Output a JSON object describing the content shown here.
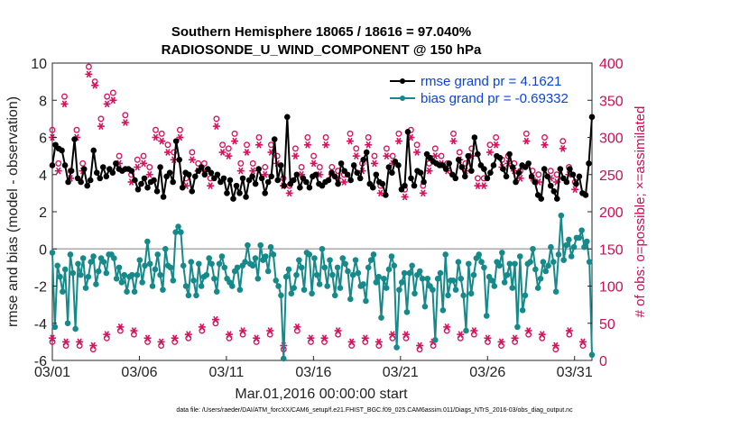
{
  "chart_data": {
    "type": "line",
    "title": "Southern Hemisphere 18065 / 18616 = 97.040%",
    "subtitle": "RADIOSONDE_U_WIND_COMPONENT @ 150 hPa",
    "xlabel": "Mar.01,2016 00:00:00 start",
    "ylabel_left": "rmse and bias (model - observation)",
    "ylabel_right": "# of obs: o=possible; ×=assimilated",
    "footer": "data file: /Users/raeder/DAI/ATM_forcXX/CAM6_setup/f.e21.FHIST_BGC.f09_025.CAM6assim.011/Diags_NTrS_2016-03/obs_diag_output.nc",
    "x_ticks": [
      {
        "day": 0,
        "label": "03/01"
      },
      {
        "day": 5,
        "label": "03/06"
      },
      {
        "day": 10,
        "label": "03/11"
      },
      {
        "day": 15,
        "label": "03/16"
      },
      {
        "day": 20,
        "label": "03/21"
      },
      {
        "day": 25,
        "label": "03/26"
      },
      {
        "day": 30,
        "label": "03/31"
      }
    ],
    "xlim": [
      0,
      31
    ],
    "ylim_left": [
      -6,
      10
    ],
    "ylim_right": [
      0,
      400
    ],
    "yticks_left": [
      -6,
      -4,
      -2,
      0,
      2,
      4,
      6,
      8,
      10
    ],
    "yticks_right": [
      0,
      50,
      100,
      150,
      200,
      250,
      300,
      350,
      400
    ],
    "colors": {
      "rmse": "#000000",
      "bias": "#168a8a",
      "obs": "#d6125d",
      "legend_text": "#0b44d8",
      "zero_line": "#aaaaaa",
      "right_axis": "#cc0f55"
    },
    "legend": [
      "rmse grand pr = 4.1621",
      "bias grand pr = -0.69332"
    ],
    "series": [
      {
        "name": "rmse",
        "axis": "left",
        "values": [
          4.5,
          5.6,
          5.4,
          5.3,
          4.5,
          3.6,
          4.2,
          5.9,
          3.8,
          3.6,
          4.3,
          3.4,
          3.7,
          5.3,
          4.1,
          3.8,
          4.4,
          3.9,
          4.3,
          4.1,
          4.6,
          4.3,
          4.2,
          4.3,
          4.3,
          4.2,
          3.7,
          3.2,
          3.5,
          3.8,
          3.3,
          3.6,
          3.7,
          3.1,
          4.4,
          2.8,
          3.9,
          4.1,
          3.6,
          5.8,
          4.8,
          3.3,
          4.1,
          4.0,
          3.1,
          3.9,
          4.2,
          4.4,
          4.0,
          4.3,
          4.1,
          3.8,
          4.0,
          3.6,
          3.8,
          3.0,
          3.7,
          2.7,
          3.4,
          3.0,
          3.8,
          2.8,
          3.7,
          3.9,
          3.5,
          4.3,
          3.8,
          3.0,
          3.6,
          3.9,
          5.9,
          3.7,
          4.5,
          3.4,
          7.1,
          3.5,
          3.7,
          4.0,
          3.3,
          3.8,
          3.6,
          3.3,
          3.9,
          4.0,
          3.5,
          3.4,
          3.6,
          3.7,
          4.1,
          3.9,
          3.5,
          4.6,
          4.2,
          4.0,
          3.7,
          4.5,
          4.1,
          3.8,
          4.8,
          5.2,
          3.5,
          3.3,
          4.0,
          3.6,
          3.5,
          2.9,
          4.4,
          4.1,
          4.7,
          4.5,
          3.2,
          3.4,
          6.3,
          3.8,
          3.4,
          4.2,
          4.1,
          3.6,
          5.1,
          4.9,
          4.7,
          4.6,
          4.5,
          4.5,
          4.3,
          4.6,
          4.0,
          3.8,
          4.8,
          4.4,
          3.9,
          5.0,
          4.2,
          6.0,
          5.1,
          4.5,
          4.3,
          3.8,
          4.1,
          4.5,
          5.0,
          4.9,
          4.3,
          3.9,
          5.1,
          4.4,
          3.6,
          4.1,
          4.5,
          4.4,
          4.6,
          3.9,
          3.6,
          2.9,
          2.7,
          4.3,
          3.9,
          3.4,
          3.1,
          2.7,
          4.3,
          3.8,
          3.6,
          4.3,
          4.0,
          3.5,
          3.9,
          3.0,
          2.9,
          4.6,
          7.1
        ],
        "marker": "filled-circle"
      },
      {
        "name": "bias",
        "axis": "left",
        "values": [
          -0.2,
          -4.2,
          -0.9,
          -1.5,
          -2.3,
          -1.1,
          -4.0,
          -0.3,
          -1.3,
          -4.3,
          -0.8,
          -1.4,
          -0.5,
          -2.1,
          -1.5,
          -0.7,
          -0.4,
          -1.9,
          -1.2,
          -0.5,
          -0.7,
          -1.3,
          -0.3,
          -0.3,
          -0.5,
          -1.6,
          -1.0,
          -1.8,
          -1.4,
          -2.3,
          -1.5,
          -1.4,
          -2.3,
          -1.4,
          -0.6,
          -1.8,
          -0.9,
          0.4,
          -0.8,
          -2.0,
          -1.1,
          -0.3,
          -1.4,
          -2.2,
          0.0,
          -0.9,
          -1.0,
          -1.7,
          0.9,
          1.2,
          0.9,
          -0.9,
          -2.0,
          -2.5,
          -0.7,
          -1.7,
          -2.5,
          -0.8,
          -2.0,
          -1.5,
          -1.4,
          -0.5,
          -0.8,
          -1.6,
          -2.3,
          -0.8,
          -0.4,
          -1.0,
          -1.6,
          -1.8,
          -2.0,
          -1.2,
          -1.0,
          -2.2,
          -0.9,
          -0.7,
          0.2,
          -0.8,
          -0.9,
          -0.5,
          -1.6,
          0.2,
          -0.6,
          -0.4,
          -1.2,
          0.1,
          -0.3,
          -1.7,
          -2.0,
          -2.5,
          -5.9,
          -1.5,
          -1.1,
          -2.4,
          -2.1,
          -1.4,
          -0.6,
          -1.0,
          -2.2,
          -0.2,
          -0.3,
          -2.4,
          -0.5,
          -1.4,
          -1.9,
          0.0,
          -1.0,
          -2.0,
          -0.6,
          -1.4,
          -2.5,
          -1.0,
          -2.1,
          -0.5,
          -0.8,
          -1.2,
          -2.7,
          -1.4,
          -0.6,
          -1.3,
          -2.0,
          -1.9,
          -2.8,
          -1.0,
          -0.6,
          -0.3,
          -1.8,
          -1.5,
          -3.7,
          -1.6,
          -2.1,
          -1.1,
          -0.4,
          -0.9,
          -5.3,
          -2.2,
          -1.8,
          -1.3,
          -3.4,
          -1.3,
          -0.9,
          -2.4,
          -1.4,
          -1.2,
          -1.6,
          -3.1,
          -1.6,
          -2.0,
          -2.2,
          -4.9,
          -1.6,
          -1.3,
          -3.3,
          -0.3,
          -2.5,
          -1.7,
          -1.7,
          -2.2,
          -0.7,
          -1.6,
          -2.5,
          -4.4,
          -0.8,
          -2.4,
          -1.4,
          -0.5,
          -0.3,
          -0.7,
          -1.0,
          -3.6,
          -1.5,
          -1.7,
          -2.0,
          -0.7,
          -0.9,
          -0.2,
          -1.8,
          -1.4,
          -0.8,
          -2.1,
          -0.8,
          -4.2,
          -0.4,
          -3.3,
          -2.5,
          -0.8,
          -0.7,
          0.0,
          -1.1,
          -2.1,
          -1.6,
          -0.7,
          -1.2,
          -0.9,
          0.1,
          -0.7,
          -2.3,
          -0.3,
          1.8,
          -0.6,
          0.2,
          0.5,
          -0.4,
          0.1,
          0.6,
          0.6,
          1.0,
          0.1,
          0.4,
          -0.7,
          -5.7
        ],
        "marker": "filled-circle"
      },
      {
        "name": "possible",
        "axis": "right",
        "values": [
          310,
          260,
          265,
          270,
          355,
          305,
          255,
          350,
          310,
          330,
          265,
          265,
          395,
          265,
          375,
          335,
          325,
          270,
          355,
          365,
          360,
          385,
          275,
          260,
          330,
          260,
          250,
          310,
          270,
          345,
          275,
          280,
          260,
          295,
          310,
          265,
          305,
          255,
          290,
          265,
          280,
          295,
          310,
          305,
          245,
          265,
          280,
          260,
          265,
          295,
          265,
          275,
          245,
          300,
          325,
          330,
          290,
          320,
          285,
          360,
          305,
          270,
          265,
          310,
          290,
          280,
          265,
          285,
          300,
          240,
          260,
          275,
          290,
          275,
          275,
          260,
          245,
          310,
          235,
          295,
          285,
          270,
          260,
          250,
          300,
          285,
          275,
          300,
          260,
          305,
          300,
          250,
          260,
          245,
          255,
          270,
          250,
          320,
          305,
          285,
          285,
          255,
          265,
          290,
          300,
          245,
          275,
          300,
          235,
          290,
          285,
          275,
          275,
          260,
          305,
          285,
          230,
          235,
          310,
          280,
          290,
          240,
          235,
          310,
          265,
          290,
          285,
          300,
          275,
          305,
          265,
          280,
          305,
          240,
          280,
          280,
          265,
          290,
          285,
          270,
          245,
          305,
          245,
          285,
          290,
          235,
          300,
          250,
          270,
          280,
          275,
          265,
          265,
          225,
          255,
          265,
          305,
          260,
          255,
          260,
          250,
          265,
          300,
          295,
          255,
          280,
          250,
          265,
          295,
          250,
          260,
          300,
          240,
          310
        ],
        "marker": "open-circle"
      },
      {
        "name": "assimilated",
        "axis": "right",
        "values": [
          300,
          250,
          255,
          245,
          345,
          295,
          245,
          345,
          300,
          320,
          255,
          255,
          385,
          255,
          370,
          325,
          315,
          260,
          345,
          355,
          350,
          375,
          265,
          250,
          320,
          250,
          240,
          300,
          260,
          335,
          265,
          270,
          250,
          285,
          300,
          255,
          295,
          245,
          280,
          255,
          270,
          285,
          300,
          295,
          235,
          255,
          270,
          250,
          255,
          285,
          255,
          265,
          235,
          290,
          315,
          320,
          280,
          310,
          275,
          350,
          295,
          260,
          255,
          300,
          280,
          270,
          255,
          275,
          290,
          230,
          250,
          265,
          280,
          265,
          265,
          250,
          235,
          300,
          225,
          285,
          275,
          260,
          250,
          240,
          290,
          275,
          265,
          290,
          250,
          295,
          290,
          240,
          250,
          235,
          245,
          260,
          240,
          310,
          295,
          275,
          275,
          245,
          255,
          280,
          290,
          235,
          265,
          290,
          225,
          280,
          275,
          265,
          265,
          250,
          295,
          275,
          220,
          225,
          300,
          270,
          280,
          230,
          225,
          300,
          255,
          280,
          275,
          290,
          265,
          295,
          255,
          270,
          295,
          230,
          270,
          270,
          255,
          280,
          275,
          260,
          235,
          295,
          235,
          275,
          280,
          225,
          290,
          240,
          260,
          270,
          265,
          255,
          255,
          215,
          245,
          255,
          295,
          250,
          245,
          250,
          240,
          255,
          290,
          285,
          245,
          270,
          240,
          255,
          285,
          240,
          250,
          290,
          230,
          300
        ],
        "marker": "asterisk"
      }
    ],
    "bottom_counts": {
      "possible": [
        25,
        30,
        35,
        20,
        45,
        40,
        20,
        30,
        25,
        15,
        20,
        35,
        30,
        45,
        30,
        40,
        25,
        30,
        35,
        15,
        40,
        25,
        30,
        35,
        20,
        30,
        40,
        25,
        35,
        20,
        30,
        25,
        15,
        40,
        35,
        20,
        50,
        45,
        25,
        30,
        40,
        20,
        35,
        30,
        15,
        25,
        45,
        30,
        35,
        20,
        25,
        15,
        30,
        35,
        40,
        20,
        30,
        25,
        35,
        20,
        25,
        45,
        30,
        35,
        40,
        25,
        20,
        30,
        35,
        25,
        15,
        30,
        20,
        25,
        35,
        30,
        40,
        25,
        30,
        20,
        25,
        15,
        30,
        35,
        20,
        25,
        30,
        40,
        35,
        20,
        30,
        25,
        10,
        35,
        30,
        20,
        25,
        15,
        30,
        20,
        10,
        30,
        25,
        35,
        20,
        35,
        25,
        15,
        30,
        20,
        25,
        15,
        30,
        40,
        35,
        30,
        25,
        20,
        15,
        0
      ],
      "assimilated": [
        30,
        35,
        40,
        25,
        50,
        45,
        25,
        35,
        30,
        20,
        25,
        40,
        35,
        50,
        35,
        45,
        30,
        35,
        40,
        20,
        45,
        30,
        35,
        40,
        25,
        35,
        45,
        30,
        40,
        25,
        35,
        30,
        20,
        45,
        40,
        25,
        55,
        50,
        30,
        35,
        45,
        25,
        40,
        35,
        20,
        30,
        50,
        35,
        40,
        25,
        30,
        20,
        35,
        40,
        45,
        25,
        35,
        30,
        40,
        25,
        30,
        50,
        35,
        40,
        45,
        30,
        25,
        35,
        40,
        30,
        20,
        35,
        25,
        30,
        40,
        35,
        45,
        30,
        35,
        25,
        30,
        20,
        35,
        40,
        25,
        30,
        35,
        45,
        40,
        25,
        35,
        30,
        15,
        40,
        35,
        25,
        30,
        20,
        35,
        25,
        15,
        35,
        30,
        40,
        25,
        40,
        30,
        20,
        35,
        25,
        30,
        20,
        35,
        45,
        40,
        35,
        30,
        25,
        20,
        5
      ]
    }
  }
}
